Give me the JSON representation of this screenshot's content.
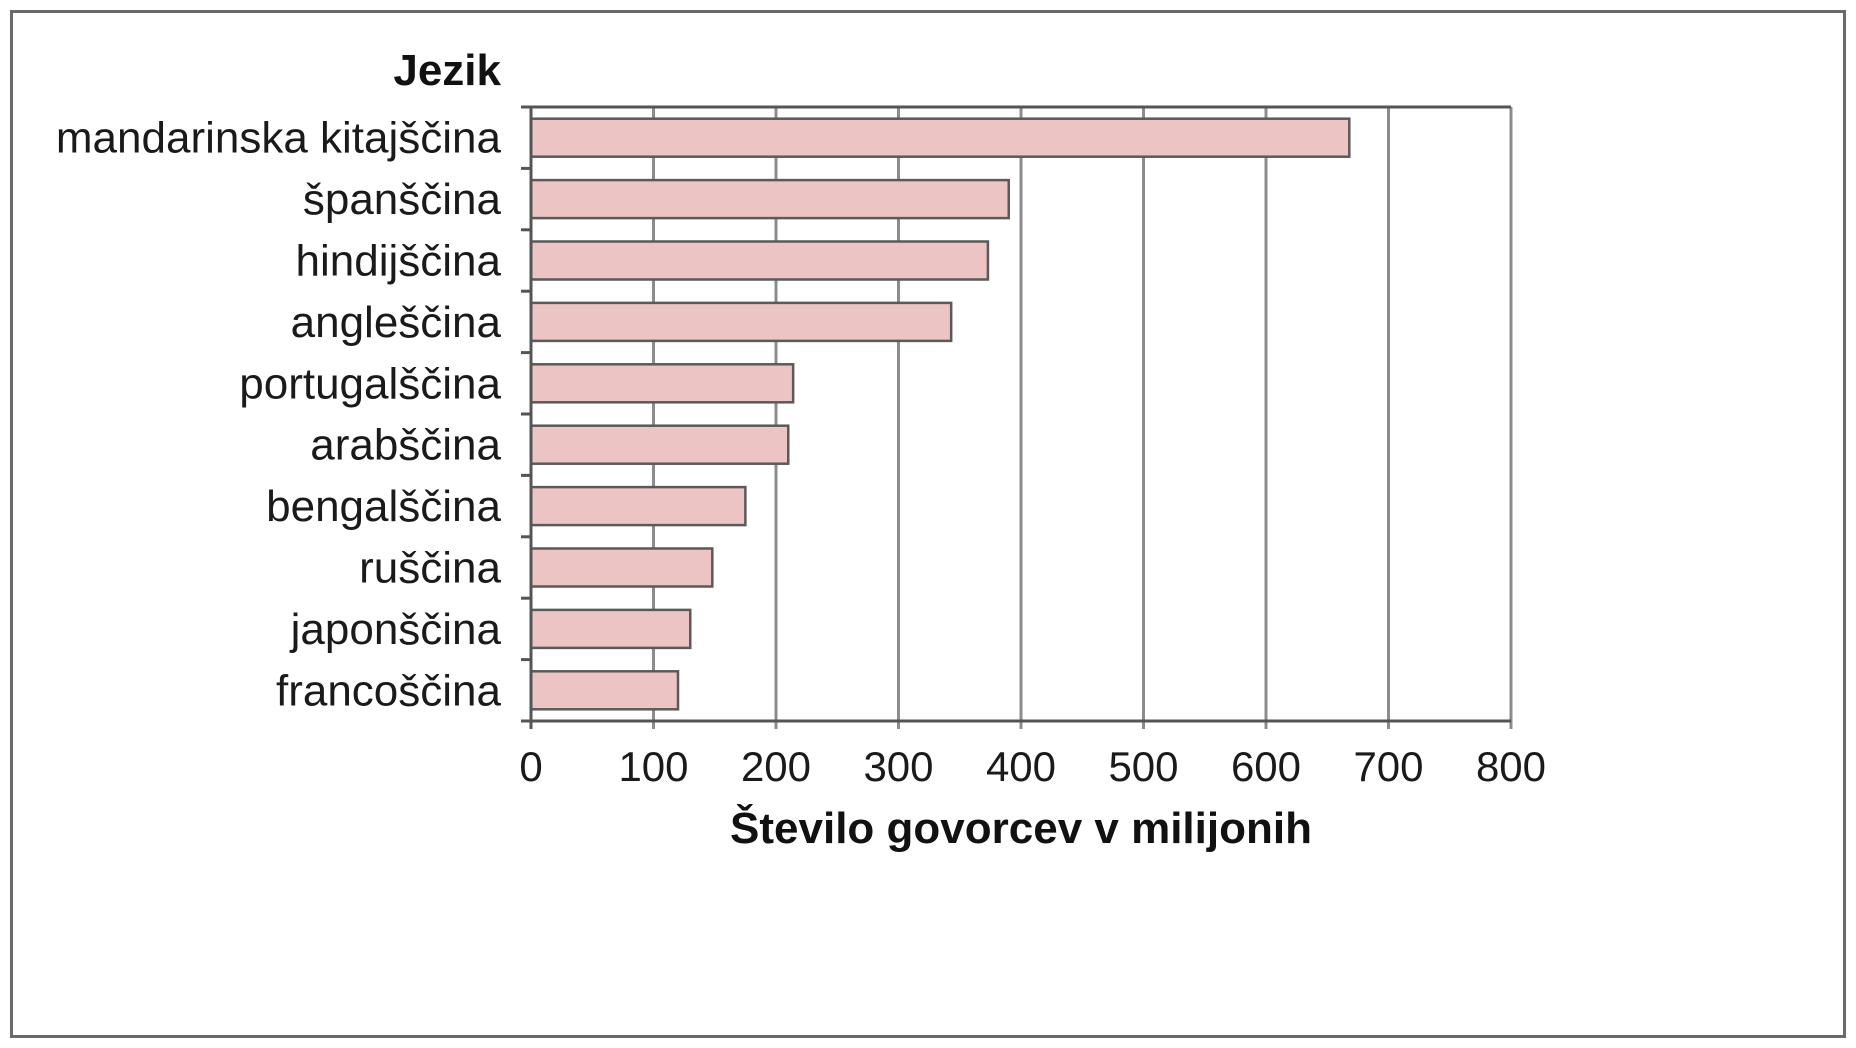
{
  "chart_data": {
    "type": "bar",
    "orientation": "horizontal",
    "categories": [
      "mandarinska kitajščina",
      "španščina",
      "hindijščina",
      "angleščina",
      "portugalščina",
      "arabščina",
      "bengalščina",
      "ruščina",
      "japonščina",
      "francoščina"
    ],
    "values": [
      668,
      390,
      373,
      343,
      214,
      210,
      175,
      148,
      130,
      120
    ],
    "ylabel": "Jezik",
    "xlabel": "Število govorcev v milijonih",
    "xlim": [
      0,
      800
    ],
    "xticks": [
      "0",
      "100",
      "200",
      "300",
      "400",
      "500",
      "600",
      "700",
      "800"
    ],
    "grid": "vertical",
    "colors": {
      "bar_fill": "#ecc4c4",
      "bar_stroke": "#5a5a5a",
      "grid": "#8c8c8c"
    }
  }
}
